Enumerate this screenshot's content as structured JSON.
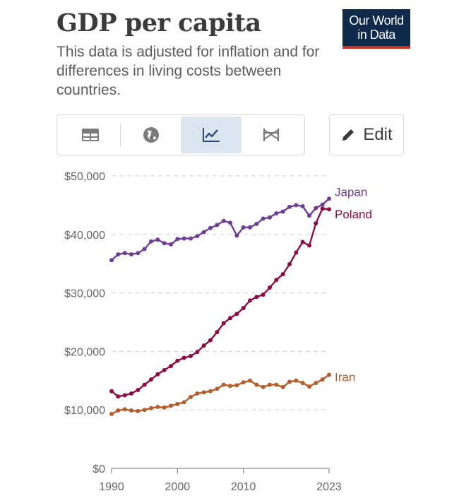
{
  "header": {
    "title": "GDP per capita",
    "subtitle": "This data is adjusted for inflation and for differences in living costs between countries.",
    "logo_line1": "Our World",
    "logo_line2": "in Data"
  },
  "toolbar": {
    "tabs": [
      {
        "icon": "table-icon",
        "active": false
      },
      {
        "icon": "globe-icon",
        "active": false
      },
      {
        "icon": "line-chart-icon",
        "active": true
      },
      {
        "icon": "slope-chart-icon",
        "active": false
      }
    ],
    "edit_label": "Edit",
    "edit_icon": "pencil-icon"
  },
  "chart_data": {
    "type": "line",
    "title": "GDP per capita",
    "xlabel": "",
    "ylabel": "",
    "xlim": [
      1990,
      2023
    ],
    "ylim": [
      0,
      50000
    ],
    "x_ticks": [
      1990,
      2000,
      2010,
      2023
    ],
    "y_ticks": [
      0,
      10000,
      20000,
      30000,
      40000,
      50000
    ],
    "y_tick_labels": [
      "$0",
      "$10,000",
      "$20,000",
      "$30,000",
      "$40,000",
      "$50,000"
    ],
    "grid": "horizontal-dashed",
    "x": [
      1990,
      1991,
      1992,
      1993,
      1994,
      1995,
      1996,
      1997,
      1998,
      1999,
      2000,
      2001,
      2002,
      2003,
      2004,
      2005,
      2006,
      2007,
      2008,
      2009,
      2010,
      2011,
      2012,
      2013,
      2014,
      2015,
      2016,
      2017,
      2018,
      2019,
      2020,
      2021,
      2022,
      2023
    ],
    "series": [
      {
        "name": "Japan",
        "color": "#6d3e91",
        "values": [
          35600,
          36600,
          36800,
          36600,
          36800,
          37500,
          38800,
          39100,
          38500,
          38300,
          39200,
          39300,
          39300,
          39700,
          40400,
          41100,
          41600,
          42300,
          42000,
          39800,
          41200,
          41200,
          41800,
          42700,
          42900,
          43600,
          43900,
          44700,
          45000,
          44800,
          43200,
          44500,
          45100,
          46100
        ]
      },
      {
        "name": "Poland",
        "color": "#8c0b44",
        "values": [
          13200,
          12300,
          12500,
          12800,
          13400,
          14300,
          15200,
          16100,
          16800,
          17500,
          18400,
          18900,
          19200,
          19900,
          21000,
          21900,
          23300,
          24800,
          25700,
          26400,
          27400,
          28700,
          29300,
          29700,
          30900,
          32200,
          33200,
          34900,
          36900,
          38700,
          38100,
          41900,
          44400,
          44300
        ]
      },
      {
        "name": "Iran",
        "color": "#b35d2a",
        "values": [
          9300,
          9900,
          10100,
          9900,
          9800,
          10000,
          10300,
          10500,
          10400,
          10700,
          11000,
          11300,
          12200,
          12800,
          13000,
          13200,
          13600,
          14300,
          14100,
          14200,
          14700,
          15000,
          14300,
          13900,
          14300,
          14300,
          13900,
          14800,
          15000,
          14600,
          14000,
          14600,
          15200,
          16000
        ]
      }
    ]
  }
}
